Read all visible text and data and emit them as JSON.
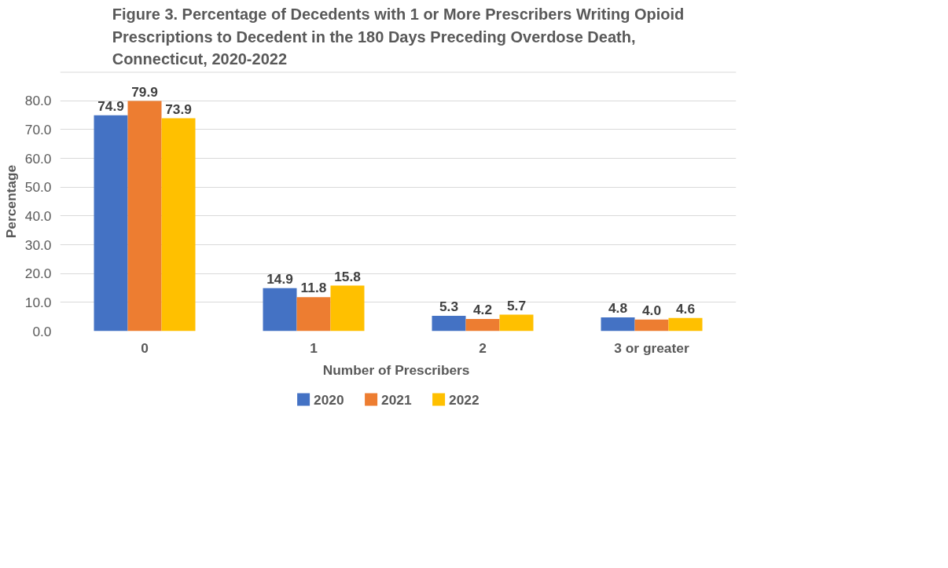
{
  "chart_data": {
    "type": "bar",
    "title": "Figure 3. Percentage of Decedents with 1 or More Prescribers Writing Opioid Prescriptions to Decedent in the 180 Days Preceding Overdose Death, Connecticut, 2020-2022",
    "xlabel": "Number of  Prescribers",
    "ylabel": "Percentage",
    "categories": [
      "0",
      "1",
      "2",
      "3 or greater"
    ],
    "series": [
      {
        "name": "2020",
        "color": "#4472c4",
        "values": [
          74.9,
          14.9,
          5.3,
          4.8
        ],
        "value_labels": [
          "74.9",
          "14.9",
          "5.3",
          "4.8"
        ]
      },
      {
        "name": "2021",
        "color": "#ed7d31",
        "values": [
          79.9,
          11.8,
          4.2,
          4.0
        ],
        "value_labels": [
          "79.9",
          "11.8",
          "4.2",
          "4.0"
        ]
      },
      {
        "name": "2022",
        "color": "#ffc000",
        "values": [
          73.9,
          15.8,
          5.7,
          4.6
        ],
        "value_labels": [
          "73.9",
          "15.8",
          "5.7",
          "4.6"
        ]
      }
    ],
    "ylim": [
      0,
      90
    ],
    "yticks": [
      {
        "value": 0,
        "label": "0.0"
      },
      {
        "value": 10,
        "label": "10.0"
      },
      {
        "value": 20,
        "label": "20.0"
      },
      {
        "value": 30,
        "label": "30.0"
      },
      {
        "value": 40,
        "label": "40.0"
      },
      {
        "value": 50,
        "label": "50.0"
      },
      {
        "value": 60,
        "label": "60.0"
      },
      {
        "value": 70,
        "label": "70.0"
      },
      {
        "value": 80,
        "label": "80.0"
      },
      {
        "value": 90,
        "label": null
      }
    ],
    "grid": "y",
    "legend": "bottom",
    "data_labels": true
  }
}
